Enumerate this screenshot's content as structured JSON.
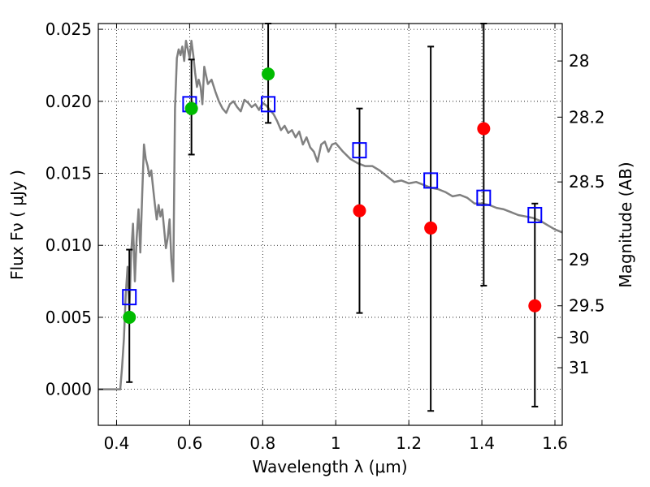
{
  "chart_data": {
    "type": "scatter",
    "xlabel": "Wavelength  λ (μm)",
    "ylabel": "Flux  Fν  ( μJy )",
    "ylabel_right": "Magnitude (AB)",
    "xlim": [
      0.35,
      1.62
    ],
    "ylim": [
      -0.0025,
      0.0254
    ],
    "grid": true,
    "x_ticks": [
      0.4,
      0.6,
      0.8,
      1.0,
      1.2,
      1.4,
      1.6
    ],
    "x_tick_labels": [
      "0.4",
      "0.6",
      "0.8",
      "1",
      "1.2",
      "1.4",
      "1.6"
    ],
    "y_ticks": [
      0.0,
      0.005,
      0.01,
      0.015,
      0.02,
      0.025
    ],
    "y_tick_labels": [
      "0.000",
      "0.005",
      "0.010",
      "0.015",
      "0.020",
      "0.025"
    ],
    "right_ticks": [
      {
        "flux": 0.0228,
        "label": "28"
      },
      {
        "flux": 0.0189,
        "label": "28.2"
      },
      {
        "flux": 0.0144,
        "label": "28.5"
      },
      {
        "flux": 0.009,
        "label": "29"
      },
      {
        "flux": 0.0058,
        "label": "29.5"
      },
      {
        "flux": 0.0036,
        "label": "30"
      },
      {
        "flux": 0.0015,
        "label": "31"
      }
    ],
    "series": [
      {
        "kind": "line",
        "color": "#808080",
        "x": [
          0.35,
          0.41,
          0.415,
          0.42,
          0.425,
          0.43,
          0.435,
          0.44,
          0.445,
          0.45,
          0.455,
          0.46,
          0.465,
          0.47,
          0.475,
          0.48,
          0.485,
          0.49,
          0.495,
          0.5,
          0.505,
          0.51,
          0.515,
          0.52,
          0.525,
          0.53,
          0.535,
          0.54,
          0.545,
          0.55,
          0.555,
          0.56,
          0.565,
          0.57,
          0.575,
          0.58,
          0.585,
          0.59,
          0.595,
          0.6,
          0.605,
          0.61,
          0.615,
          0.62,
          0.625,
          0.63,
          0.635,
          0.64,
          0.645,
          0.65,
          0.66,
          0.67,
          0.68,
          0.69,
          0.7,
          0.71,
          0.72,
          0.73,
          0.74,
          0.75,
          0.76,
          0.77,
          0.78,
          0.79,
          0.8,
          0.81,
          0.82,
          0.83,
          0.84,
          0.85,
          0.86,
          0.87,
          0.88,
          0.89,
          0.9,
          0.91,
          0.92,
          0.93,
          0.94,
          0.95,
          0.96,
          0.97,
          0.98,
          0.99,
          1.0,
          1.02,
          1.04,
          1.06,
          1.08,
          1.1,
          1.12,
          1.14,
          1.16,
          1.18,
          1.2,
          1.22,
          1.24,
          1.26,
          1.28,
          1.3,
          1.32,
          1.34,
          1.36,
          1.38,
          1.4,
          1.42,
          1.44,
          1.46,
          1.48,
          1.5,
          1.52,
          1.54,
          1.56,
          1.58,
          1.6,
          1.62
        ],
        "y": [
          0.0,
          0.0,
          0.0015,
          0.0035,
          0.0065,
          0.0085,
          0.0055,
          0.0095,
          0.0115,
          0.0075,
          0.0105,
          0.0125,
          0.0095,
          0.0135,
          0.017,
          0.016,
          0.0155,
          0.0148,
          0.0152,
          0.014,
          0.0128,
          0.0118,
          0.0128,
          0.012,
          0.0125,
          0.0112,
          0.0098,
          0.0105,
          0.0118,
          0.009,
          0.0075,
          0.0195,
          0.023,
          0.0236,
          0.0232,
          0.0238,
          0.0228,
          0.0242,
          0.0236,
          0.023,
          0.0242,
          0.0232,
          0.022,
          0.021,
          0.0215,
          0.021,
          0.0198,
          0.0224,
          0.0218,
          0.0212,
          0.0215,
          0.0207,
          0.02,
          0.0195,
          0.0192,
          0.0198,
          0.02,
          0.0196,
          0.0193,
          0.0201,
          0.0199,
          0.0196,
          0.0198,
          0.0194,
          0.0199,
          0.0197,
          0.0194,
          0.0191,
          0.0186,
          0.018,
          0.0183,
          0.0178,
          0.018,
          0.0175,
          0.0179,
          0.017,
          0.0175,
          0.0168,
          0.0165,
          0.0158,
          0.017,
          0.0172,
          0.0165,
          0.017,
          0.0171,
          0.0165,
          0.016,
          0.0157,
          0.0155,
          0.0155,
          0.0152,
          0.0148,
          0.0144,
          0.0145,
          0.0143,
          0.0144,
          0.0142,
          0.014,
          0.0139,
          0.0137,
          0.0134,
          0.0135,
          0.0133,
          0.0129,
          0.0129,
          0.0128,
          0.0126,
          0.0125,
          0.0123,
          0.0121,
          0.012,
          0.0119,
          0.0117,
          0.0114,
          0.0111,
          0.0109
        ]
      },
      {
        "kind": "square",
        "color": "#0000ff",
        "x": [
          0.435,
          0.6,
          0.815,
          1.065,
          1.26,
          1.405,
          1.545
        ],
        "y": [
          0.0064,
          0.0198,
          0.0198,
          0.0166,
          0.0145,
          0.0133,
          0.0121
        ]
      },
      {
        "kind": "dot",
        "color": "#00bb00",
        "x": [
          0.435,
          0.605,
          0.815
        ],
        "y": [
          0.005,
          0.0195,
          0.0219
        ]
      },
      {
        "kind": "dot",
        "color": "#ff0000",
        "x": [
          1.065,
          1.26,
          1.405,
          1.545
        ],
        "y": [
          0.0124,
          0.0112,
          0.0181,
          0.0058
        ]
      }
    ],
    "error_bars": {
      "color": "#000000",
      "x": [
        0.435,
        0.605,
        0.815,
        1.065,
        1.26,
        1.405,
        1.545
      ],
      "low": [
        0.0005,
        0.0163,
        0.0185,
        0.0053,
        -0.0015,
        0.0072,
        -0.0012
      ],
      "high": [
        0.0097,
        0.0229,
        0.0254,
        0.0195,
        0.0238,
        0.0254,
        0.0129
      ]
    }
  }
}
